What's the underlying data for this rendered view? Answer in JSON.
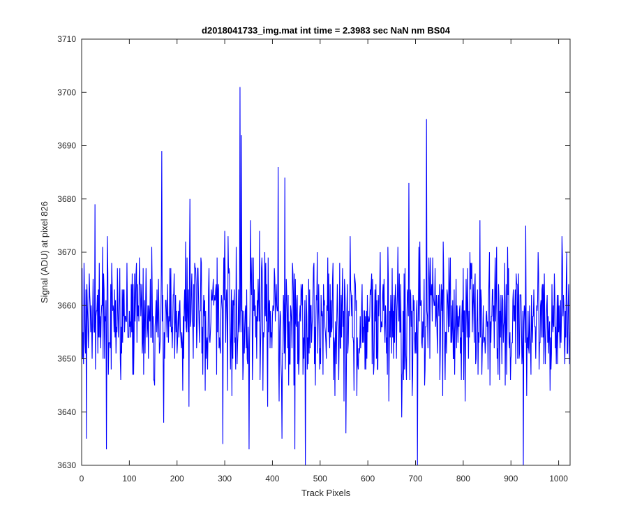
{
  "chart_data": {
    "type": "line",
    "title": "d2018041733_img.mat int time = 2.3983 sec  NaN nm BS04",
    "xlabel": "Track Pixels",
    "ylabel": "Signal (ADU) at pixel 826",
    "xlim": [
      0,
      1024
    ],
    "ylim": [
      3630,
      3710
    ],
    "xticks": [
      0,
      100,
      200,
      300,
      400,
      500,
      600,
      700,
      800,
      900,
      1000
    ],
    "yticks": [
      3630,
      3640,
      3650,
      3660,
      3670,
      3680,
      3690,
      3700,
      3710
    ],
    "grid": false,
    "line_color": "#0000ff",
    "series": [
      {
        "noise": {
          "n_points": 1024,
          "mean": 3657,
          "std": 6.5,
          "min": 3630,
          "max": 3710
        },
        "notable_points": [
          {
            "x": 10,
            "y": 3635
          },
          {
            "x": 28,
            "y": 3679
          },
          {
            "x": 52,
            "y": 3633
          },
          {
            "x": 168,
            "y": 3689
          },
          {
            "x": 172,
            "y": 3638
          },
          {
            "x": 227,
            "y": 3680
          },
          {
            "x": 332,
            "y": 3701
          },
          {
            "x": 335,
            "y": 3692
          },
          {
            "x": 351,
            "y": 3633
          },
          {
            "x": 412,
            "y": 3686
          },
          {
            "x": 414,
            "y": 3642
          },
          {
            "x": 420,
            "y": 3635
          },
          {
            "x": 426,
            "y": 3684
          },
          {
            "x": 447,
            "y": 3633
          },
          {
            "x": 469,
            "y": 3630
          },
          {
            "x": 686,
            "y": 3683
          },
          {
            "x": 704,
            "y": 3630
          },
          {
            "x": 723,
            "y": 3695
          },
          {
            "x": 926,
            "y": 3630
          }
        ]
      }
    ]
  }
}
